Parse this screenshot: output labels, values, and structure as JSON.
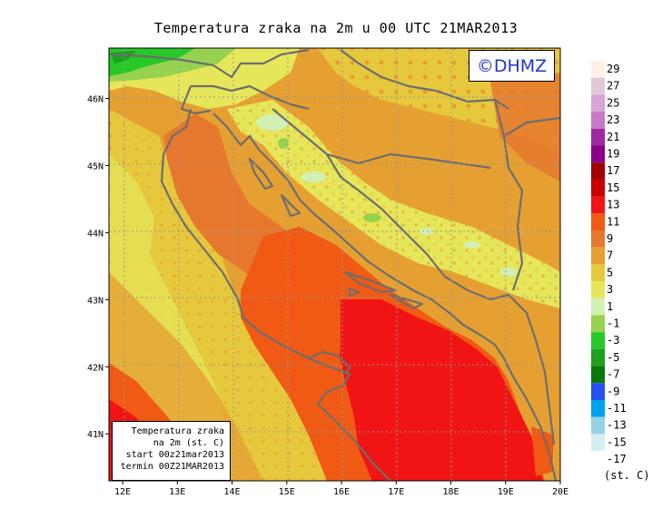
{
  "title": "Temperatura zraka na 2m u 00 UTC 21MAR2013",
  "watermark": "©DHMZ",
  "info_box": {
    "line1": "Temperatura zraka",
    "line2": "na 2m (st. C)",
    "line3": "start 00z21mar2013",
    "line4": "termin 00Z21MAR2013"
  },
  "axes": {
    "x_ticks": [
      "12E",
      "13E",
      "14E",
      "15E",
      "16E",
      "17E",
      "18E",
      "19E",
      "20E"
    ],
    "y_ticks": [
      "46N",
      "45N",
      "44N",
      "43N",
      "42N",
      "41N"
    ],
    "lon_range": [
      11.75,
      20
    ],
    "lat_range": [
      40.3,
      46.75
    ]
  },
  "legend": {
    "unit": "(st. C)",
    "levels": [
      {
        "label": "29",
        "color": "#fff0e6"
      },
      {
        "label": "27",
        "color": "#e1c8d8"
      },
      {
        "label": "25",
        "color": "#d7a5d7"
      },
      {
        "label": "23",
        "color": "#c878c8"
      },
      {
        "label": "21",
        "color": "#a028a0"
      },
      {
        "label": "19",
        "color": "#8c008c"
      },
      {
        "label": "17",
        "color": "#a00000"
      },
      {
        "label": "15",
        "color": "#c80000"
      },
      {
        "label": "13",
        "color": "#f01414"
      },
      {
        "label": "11",
        "color": "#f05a14"
      },
      {
        "label": "9",
        "color": "#e6782d"
      },
      {
        "label": "7",
        "color": "#e6a032"
      },
      {
        "label": "5",
        "color": "#e6c83c"
      },
      {
        "label": "3",
        "color": "#e6e65a"
      },
      {
        "label": "1",
        "color": "#d2f0b4"
      },
      {
        "label": "-1",
        "color": "#96d250"
      },
      {
        "label": "-3",
        "color": "#28c828"
      },
      {
        "label": "-5",
        "color": "#1ea01e"
      },
      {
        "label": "-7",
        "color": "#087808"
      },
      {
        "label": "-9",
        "color": "#2850f0"
      },
      {
        "label": "-11",
        "color": "#00a0f0"
      },
      {
        "label": "-13",
        "color": "#96d2e6"
      },
      {
        "label": "-15",
        "color": "#d2f0f0"
      },
      {
        "label": "-17",
        "color": "#ffffff"
      }
    ]
  },
  "colors": {
    "coastline": "#6e6e6e",
    "grid": "#969696",
    "land_default": "#e6a032",
    "sea_warm": "#f05a14",
    "sea_hot": "#f01414"
  }
}
